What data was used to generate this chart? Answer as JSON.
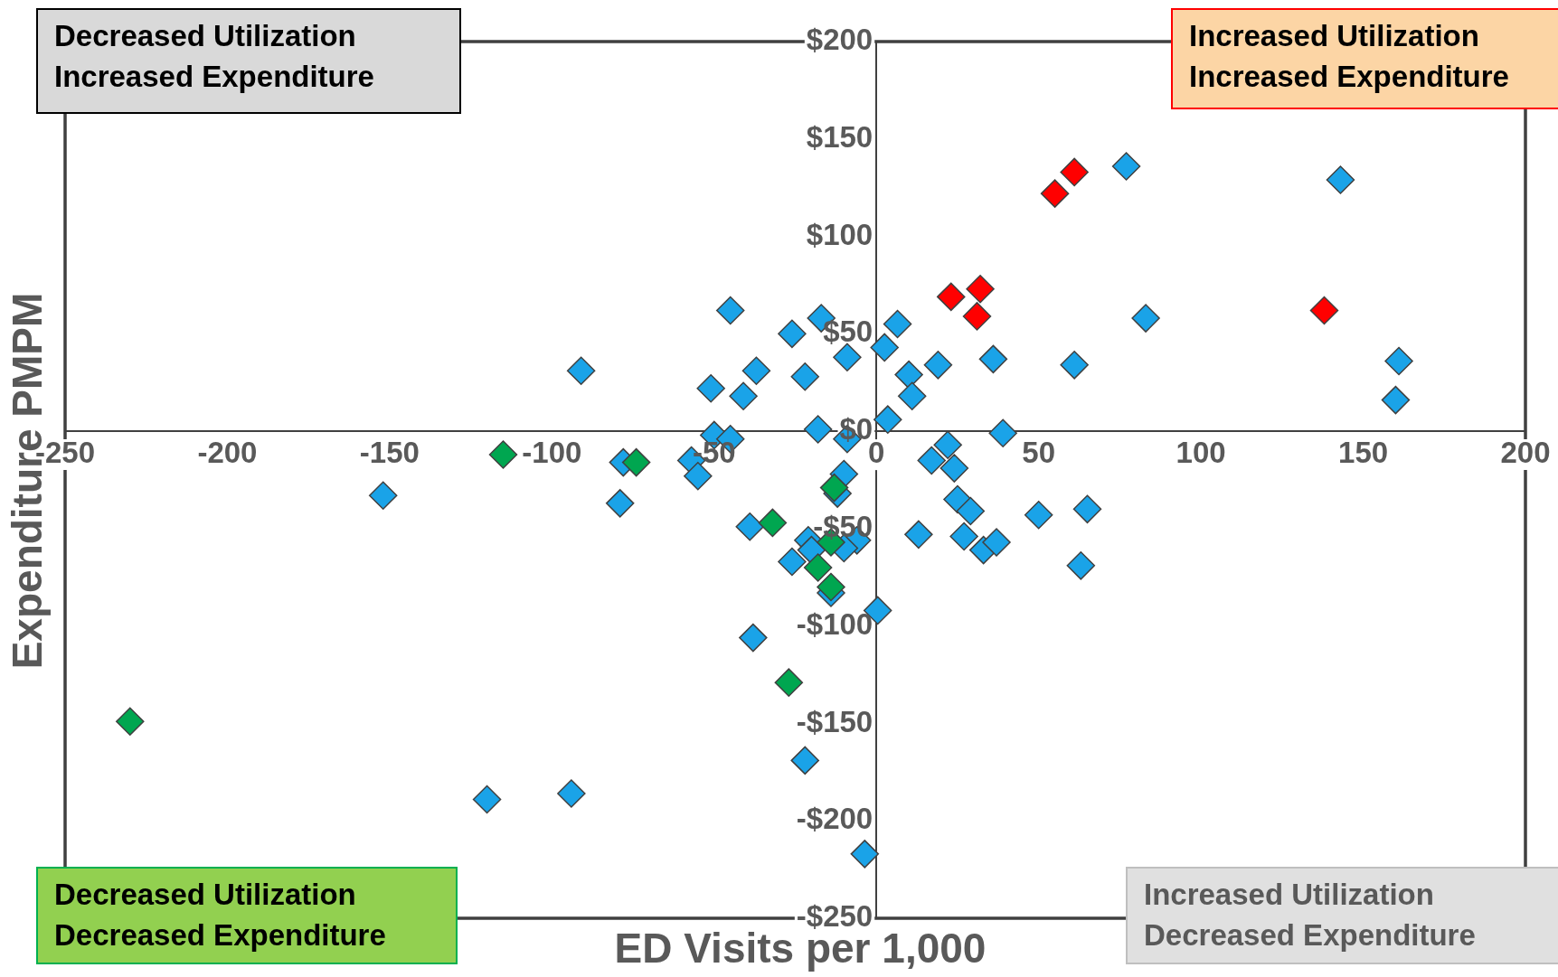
{
  "chart_data": {
    "type": "scatter",
    "xlabel": "ED Visits per 1,000",
    "ylabel": "Expenditure PMPM",
    "xlim": [
      -250,
      200
    ],
    "xticks": [
      -250,
      -200,
      -150,
      -100,
      -50,
      0,
      50,
      100,
      150,
      200
    ],
    "ylim": [
      -250,
      200
    ],
    "yticks": [
      {
        "value": -250,
        "label": "-$250"
      },
      {
        "value": -200,
        "label": "-$200"
      },
      {
        "value": -150,
        "label": "-$150"
      },
      {
        "value": -100,
        "label": "-$100"
      },
      {
        "value": -50,
        "label": "-$50"
      },
      {
        "value": 0,
        "label": "$0"
      },
      {
        "value": 50,
        "label": "$50"
      },
      {
        "value": 100,
        "label": "$100"
      },
      {
        "value": 150,
        "label": "$150"
      },
      {
        "value": 200,
        "label": "$200"
      }
    ],
    "grid": false,
    "legend": false,
    "marker": "diamond",
    "annotations": [
      "Decreased Utilization\nIncreased Expenditure",
      "Increased Utilization\nIncreased Expenditure",
      "Decreased Utilization\nDecreased Expenditure",
      "Increased Utilization\nDecreased Expenditure"
    ],
    "series": [
      {
        "color": "#1aa3e8",
        "x": [
          143,
          77,
          83,
          161,
          160,
          61,
          36,
          39,
          50,
          65,
          63,
          6.5,
          2.5,
          10,
          19,
          11,
          3.5,
          22,
          17,
          24,
          25,
          29,
          27,
          33,
          37,
          13,
          0.4,
          -3.6,
          -22,
          -38,
          -45,
          -17,
          -26,
          -9,
          -37,
          -22,
          -51,
          -41,
          -91,
          -18,
          -9,
          -50,
          -45,
          -57,
          -55,
          -78,
          -79,
          -10,
          -12,
          -39,
          -6,
          -10,
          -21,
          -20,
          -26,
          -14,
          -152,
          -120,
          -94
        ],
        "values": [
          129,
          136,
          58,
          36,
          16,
          34,
          37,
          -1,
          -43,
          -40,
          -69,
          55,
          43,
          29,
          34,
          18,
          6,
          -7,
          -15,
          -19,
          -35,
          -41,
          -54,
          -61,
          -57,
          -53,
          -92,
          -217,
          -169,
          -106,
          62,
          58,
          50,
          38,
          31,
          28,
          22,
          18,
          31,
          1,
          -4,
          -2,
          -4,
          -15,
          -23,
          -16,
          -37,
          -22,
          -32,
          -49,
          -56,
          -60,
          -56,
          -61,
          -67,
          -83,
          -33,
          -189,
          -186
        ]
      },
      {
        "color": "#ff0000",
        "x": [
          55,
          61,
          23,
          32,
          31,
          138
        ],
        "values": [
          122,
          133,
          69,
          73,
          59,
          62
        ]
      },
      {
        "color": "#00a650",
        "x": [
          -115,
          -74,
          -13,
          -32,
          -14,
          -18,
          -14,
          -27,
          -230
        ],
        "values": [
          -12,
          -16,
          -29,
          -47,
          -57,
          -70,
          -80,
          -129,
          -149
        ]
      }
    ]
  }
}
